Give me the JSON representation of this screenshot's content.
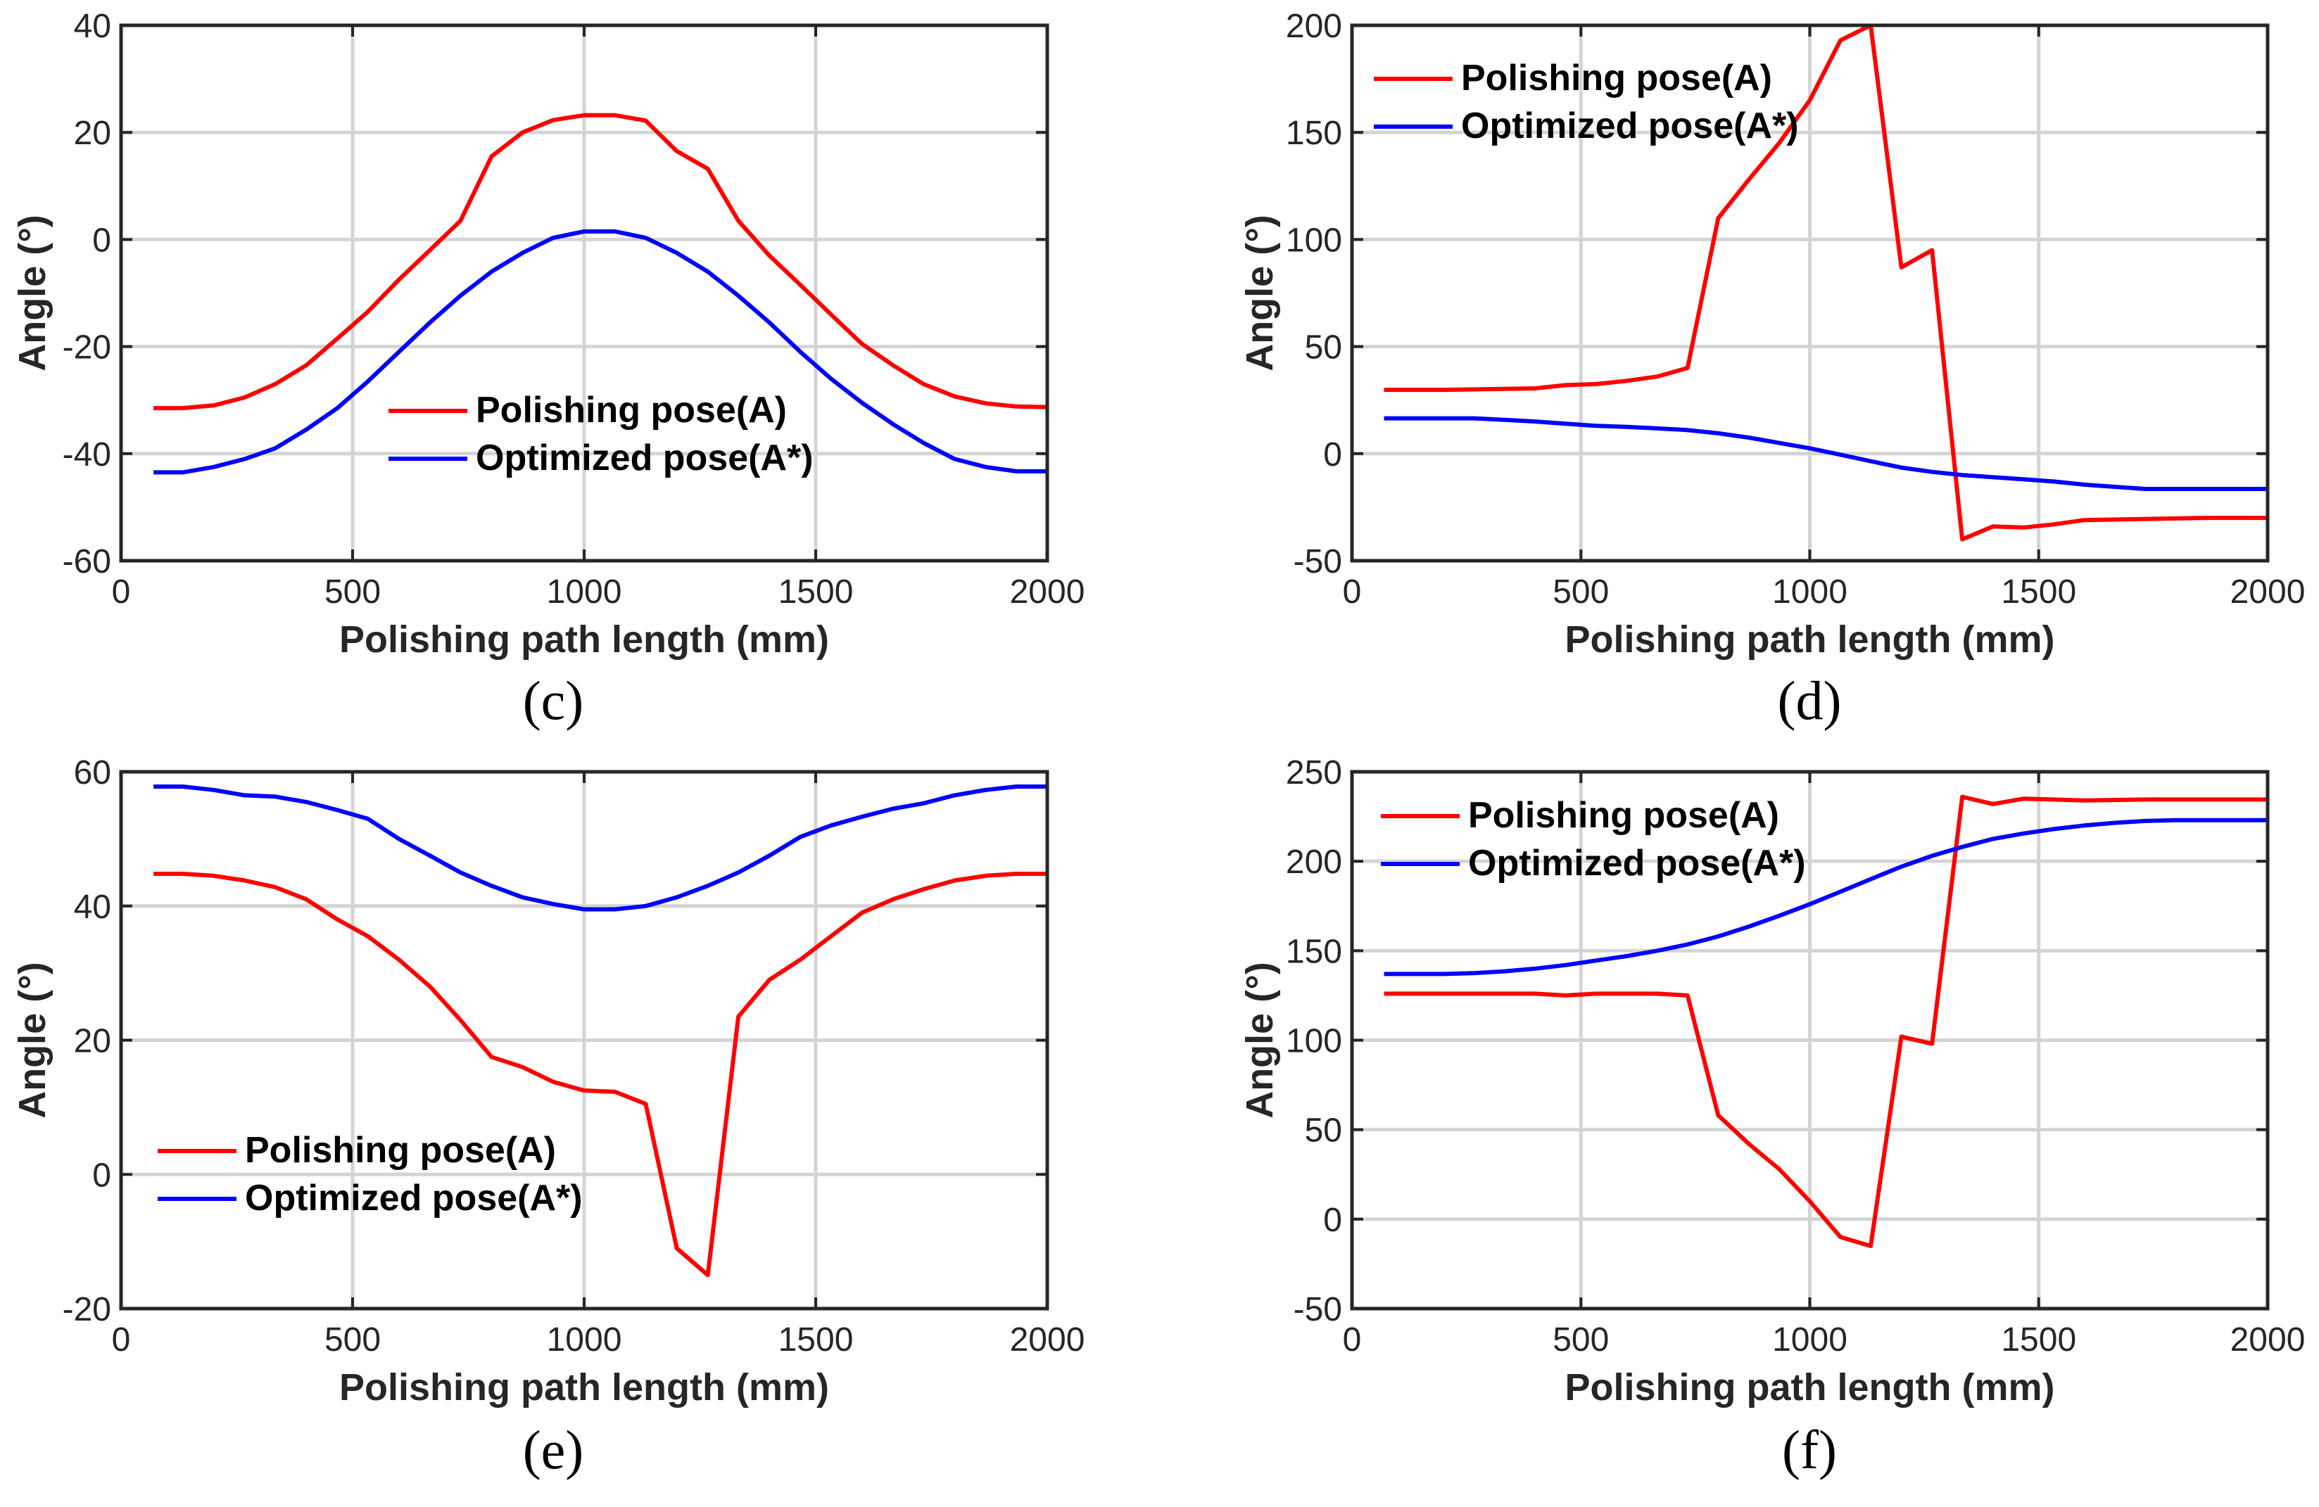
{
  "colors": {
    "polishing": "#ff0000",
    "optimized": "#0000ff"
  },
  "chart_data": [
    {
      "type": "line",
      "caption": "(c)",
      "xlabel": "Polishing path length (mm)",
      "ylabel": "Angle (°)",
      "xlim": [
        0,
        2000
      ],
      "ylim": [
        -60,
        40
      ],
      "xticks": [
        0,
        500,
        1000,
        1500,
        2000
      ],
      "yticks": [
        -60,
        -40,
        -20,
        0,
        20,
        40
      ],
      "grid": true,
      "legend": "lower-center",
      "series": [
        {
          "name": "Polishing pose(A)",
          "color": "#ff0000",
          "x": [
            70,
            133,
            200,
            267,
            333,
            400,
            467,
            533,
            600,
            667,
            733,
            800,
            867,
            933,
            1000,
            1067,
            1133,
            1200,
            1267,
            1333,
            1400,
            1467,
            1533,
            1600,
            1667,
            1733,
            1800,
            1867,
            1933,
            2000
          ],
          "y": [
            -31.5,
            -31.5,
            -31,
            -29.5,
            -27,
            -23.5,
            -18.5,
            -13.5,
            -7.5,
            -2,
            3.5,
            15.5,
            20,
            22.3,
            23.2,
            23.2,
            22.2,
            16.5,
            13.2,
            3.5,
            -3,
            -8.5,
            -14,
            -19.5,
            -23.5,
            -27,
            -29.3,
            -30.6,
            -31.2,
            -31.3
          ]
        },
        {
          "name": "Optimized pose(A*)",
          "color": "#0000ff",
          "x": [
            70,
            133,
            200,
            267,
            333,
            400,
            467,
            533,
            600,
            667,
            733,
            800,
            867,
            933,
            1000,
            1067,
            1133,
            1200,
            1267,
            1333,
            1400,
            1467,
            1533,
            1600,
            1667,
            1733,
            1800,
            1867,
            1933,
            2000
          ],
          "y": [
            -43.5,
            -43.5,
            -42.5,
            -41,
            -39,
            -35.5,
            -31.5,
            -26.5,
            -21,
            -15.5,
            -10.5,
            -6,
            -2.5,
            0.3,
            1.5,
            1.5,
            0.3,
            -2.5,
            -6,
            -10.5,
            -15.5,
            -21,
            -26,
            -30.5,
            -34.5,
            -38,
            -41,
            -42.5,
            -43.3,
            -43.3
          ]
        }
      ]
    },
    {
      "type": "line",
      "caption": "(d)",
      "xlabel": "Polishing path length (mm)",
      "ylabel": "Angle (°)",
      "xlim": [
        0,
        2000
      ],
      "ylim": [
        -50,
        200
      ],
      "xticks": [
        0,
        500,
        1000,
        1500,
        2000
      ],
      "yticks": [
        -50,
        0,
        50,
        100,
        150,
        200
      ],
      "grid": true,
      "legend": "top-left",
      "series": [
        {
          "name": "Polishing pose(A)",
          "color": "#ff0000",
          "x": [
            70,
            200,
            400,
            467,
            533,
            600,
            667,
            733,
            800,
            867,
            933,
            1000,
            1067,
            1133,
            1200,
            1267,
            1333,
            1400,
            1467,
            1533,
            1600,
            1733,
            1867,
            2000
          ],
          "y": [
            29.8,
            29.8,
            30.5,
            32,
            32.5,
            34,
            36,
            40,
            110,
            128,
            145,
            165,
            193,
            200,
            87,
            95,
            -40,
            -34,
            -34.5,
            -33,
            -31,
            -30.5,
            -30,
            -30
          ]
        },
        {
          "name": "Optimized pose(A*)",
          "color": "#0000ff",
          "x": [
            70,
            133,
            200,
            267,
            333,
            400,
            467,
            533,
            600,
            667,
            733,
            800,
            867,
            933,
            1000,
            1067,
            1133,
            1200,
            1267,
            1333,
            1400,
            1467,
            1533,
            1600,
            1667,
            1733,
            1800,
            1867,
            1933,
            2000
          ],
          "y": [
            16.5,
            16.5,
            16.5,
            16.5,
            15.8,
            15,
            14,
            13,
            12.5,
            11.8,
            11,
            9.5,
            7.5,
            5,
            2.5,
            -0.5,
            -3.5,
            -6.5,
            -8.5,
            -10,
            -11,
            -12,
            -13,
            -14.5,
            -15.5,
            -16.5,
            -16.5,
            -16.5,
            -16.5,
            -16.5
          ]
        }
      ]
    },
    {
      "type": "line",
      "caption": "(e)",
      "xlabel": "Polishing path length (mm)",
      "ylabel": "Angle (°)",
      "xlim": [
        0,
        2000
      ],
      "ylim": [
        -20,
        60
      ],
      "xticks": [
        0,
        500,
        1000,
        1500,
        2000
      ],
      "yticks": [
        -20,
        0,
        20,
        40,
        60
      ],
      "grid": true,
      "legend": "lower-left",
      "series": [
        {
          "name": "Polishing pose(A)",
          "color": "#ff0000",
          "x": [
            70,
            133,
            200,
            267,
            333,
            400,
            467,
            533,
            600,
            667,
            733,
            800,
            867,
            933,
            1000,
            1067,
            1133,
            1200,
            1267,
            1333,
            1400,
            1467,
            1533,
            1600,
            1667,
            1733,
            1800,
            1867,
            1933,
            2000
          ],
          "y": [
            44.8,
            44.8,
            44.5,
            43.8,
            42.8,
            41,
            38,
            35.5,
            32,
            28,
            23,
            17.5,
            16,
            13.8,
            12.5,
            12.3,
            10.5,
            -11,
            -15,
            23.5,
            29,
            32,
            35.5,
            39,
            41,
            42.5,
            43.8,
            44.5,
            44.8,
            44.8
          ]
        },
        {
          "name": "Optimized pose(A*)",
          "color": "#0000ff",
          "x": [
            70,
            133,
            200,
            267,
            333,
            400,
            467,
            533,
            600,
            667,
            733,
            800,
            867,
            933,
            1000,
            1067,
            1133,
            1200,
            1267,
            1333,
            1400,
            1467,
            1533,
            1600,
            1667,
            1733,
            1800,
            1867,
            1933,
            2000
          ],
          "y": [
            57.8,
            57.8,
            57.3,
            56.5,
            56.3,
            55.5,
            54.3,
            53,
            50,
            47.5,
            45,
            43,
            41.3,
            40.3,
            39.5,
            39.5,
            40,
            41.3,
            43,
            45,
            47.5,
            50.3,
            52,
            53.3,
            54.5,
            55.3,
            56.5,
            57.3,
            57.8,
            57.8
          ]
        }
      ]
    },
    {
      "type": "line",
      "caption": "(f)",
      "xlabel": "Polishing path length (mm)",
      "ylabel": "Angle (°)",
      "xlim": [
        0,
        2000
      ],
      "ylim": [
        -50,
        250
      ],
      "xticks": [
        0,
        500,
        1000,
        1500,
        2000
      ],
      "yticks": [
        -50,
        0,
        50,
        100,
        150,
        200,
        250
      ],
      "grid": true,
      "legend": "top-left",
      "series": [
        {
          "name": "Polishing pose(A)",
          "color": "#ff0000",
          "x": [
            70,
            200,
            333,
            400,
            467,
            533,
            600,
            667,
            733,
            800,
            867,
            933,
            1000,
            1067,
            1133,
            1200,
            1267,
            1333,
            1400,
            1467,
            1533,
            1600,
            1733,
            1867,
            2000
          ],
          "y": [
            126,
            126,
            126,
            126,
            125,
            126,
            126,
            126,
            125,
            58,
            42,
            28,
            10,
            -10,
            -15,
            102,
            98,
            236,
            232,
            235,
            234.5,
            234,
            234.5,
            234.5,
            234.5
          ]
        },
        {
          "name": "Optimized pose(A*)",
          "color": "#0000ff",
          "x": [
            70,
            133,
            200,
            267,
            333,
            400,
            467,
            533,
            600,
            667,
            733,
            800,
            867,
            933,
            1000,
            1067,
            1133,
            1200,
            1267,
            1333,
            1400,
            1467,
            1533,
            1600,
            1667,
            1733,
            1800,
            1867,
            1933,
            2000
          ],
          "y": [
            137,
            137,
            137,
            137.5,
            138.5,
            140,
            142,
            144.5,
            147,
            150,
            153.5,
            158,
            163.5,
            169.5,
            176,
            183,
            190,
            197,
            203,
            208,
            212.5,
            215.5,
            218,
            220,
            221.5,
            222.5,
            223,
            223,
            223,
            223
          ]
        }
      ]
    }
  ]
}
